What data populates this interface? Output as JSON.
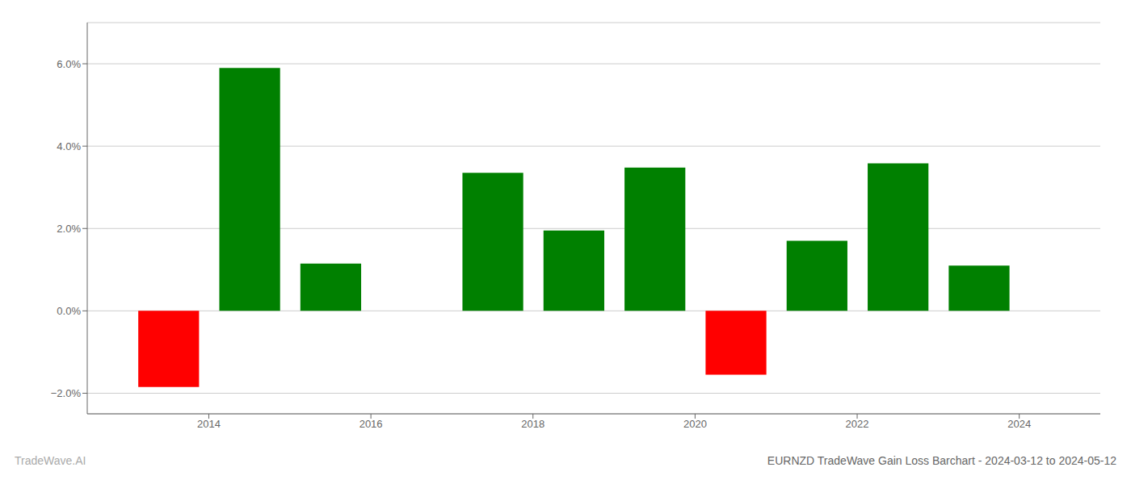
{
  "chart_data": {
    "type": "bar",
    "title": "EURNZD TradeWave Gain Loss Barchart - 2024-03-12 to 2024-05-12",
    "annotations": [
      "TradeWave.AI"
    ],
    "x": [
      2013.5,
      2014.5,
      2015.5,
      2017.5,
      2018.5,
      2019.5,
      2020.5,
      2021.5,
      2022.5,
      2023.5
    ],
    "values": [
      -1.85,
      5.9,
      1.15,
      3.35,
      1.95,
      3.48,
      -1.55,
      1.7,
      3.58,
      1.1
    ],
    "colors": [
      "#ff0000",
      "#008000",
      "#008000",
      "#008000",
      "#008000",
      "#008000",
      "#ff0000",
      "#008000",
      "#008000",
      "#008000"
    ],
    "xlim": [
      2012.5,
      2025.0
    ],
    "xticks": [
      2014,
      2016,
      2018,
      2020,
      2022,
      2024
    ],
    "ylim": [
      -2.5,
      7.0
    ],
    "yticks": [
      {
        "value": -2.0,
        "label": "−2.0%"
      },
      {
        "value": 0.0,
        "label": "0.0%"
      },
      {
        "value": 2.0,
        "label": "2.0%"
      },
      {
        "value": 4.0,
        "label": "4.0%"
      },
      {
        "value": 6.0,
        "label": "6.0%"
      }
    ],
    "grid": true
  }
}
